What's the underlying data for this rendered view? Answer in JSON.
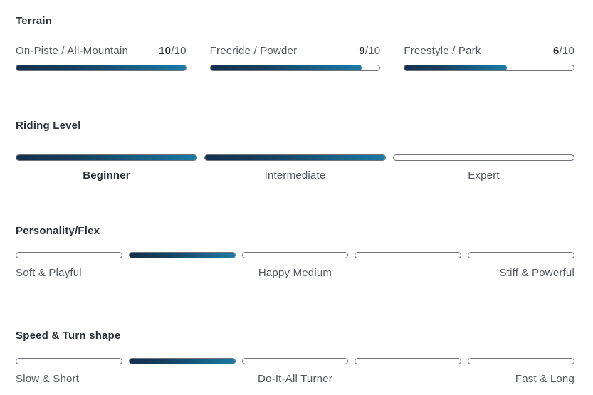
{
  "colors": {
    "bar_gradient_start": "#14304d",
    "bar_gradient_end": "#1a7ba6",
    "track_border": "#6f7276",
    "heading_text": "#2d3135",
    "label_text": "#54585c"
  },
  "sections": {
    "terrain": {
      "title": "Terrain",
      "items": [
        {
          "label": "On-Piste / All-Mountain",
          "value": "10",
          "suffix": "/10",
          "fill_pct": 100
        },
        {
          "label": "Freeride / Powder",
          "value": "9",
          "suffix": "/10",
          "fill_pct": 89
        },
        {
          "label": "Freestyle / Park",
          "value": "6",
          "suffix": "/10",
          "fill_pct": 60
        }
      ]
    },
    "riding_level": {
      "title": "Riding Level",
      "segments": [
        {
          "label": "Beginner",
          "fill_pct": 100,
          "emphasis": true
        },
        {
          "label": "Intermediate",
          "fill_pct": 100,
          "emphasis": false
        },
        {
          "label": "Expert",
          "fill_pct": 0,
          "emphasis": false
        }
      ]
    },
    "personality": {
      "title": "Personality/Flex",
      "segments": [
        {
          "fill_pct": 0
        },
        {
          "fill_pct": 100
        },
        {
          "fill_pct": 0
        },
        {
          "fill_pct": 0
        },
        {
          "fill_pct": 0
        }
      ],
      "labels": {
        "left": "Soft & Playful",
        "center": "Happy Medium",
        "right": "Stiff & Powerful"
      }
    },
    "speed": {
      "title": "Speed & Turn shape",
      "segments": [
        {
          "fill_pct": 0
        },
        {
          "fill_pct": 100
        },
        {
          "fill_pct": 0
        },
        {
          "fill_pct": 0
        },
        {
          "fill_pct": 0
        }
      ],
      "labels": {
        "left": "Slow & Short",
        "center": "Do-It-All Turner",
        "right": "Fast & Long"
      }
    }
  }
}
